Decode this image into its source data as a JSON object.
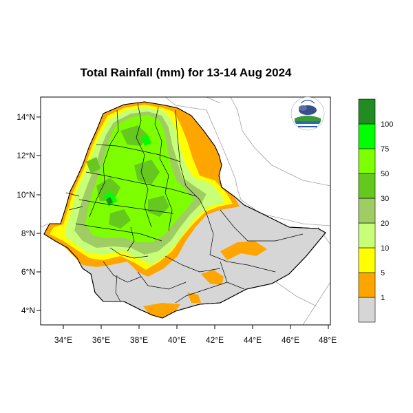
{
  "title": "Total Rainfall (mm) for 13-14 Aug 2024",
  "map": {
    "x_ticks": [
      "34°E",
      "36°E",
      "38°E",
      "40°E",
      "42°E",
      "44°E",
      "46°E",
      "48°E"
    ],
    "y_ticks": [
      "14°N",
      "12°N",
      "10°N",
      "8°N",
      "6°N",
      "4°N"
    ],
    "logo_icon": "ethiopian-meteorology-institute-logo"
  },
  "legend": {
    "labels": [
      "1",
      "5",
      "10",
      "20",
      "30",
      "50",
      "75",
      "100"
    ],
    "colors": [
      "#d6d6d6",
      "#ffa500",
      "#ffff00",
      "#c8ff78",
      "#a0cc64",
      "#64c81e",
      "#7dff00",
      "#00ff00",
      "#228b22"
    ]
  }
}
